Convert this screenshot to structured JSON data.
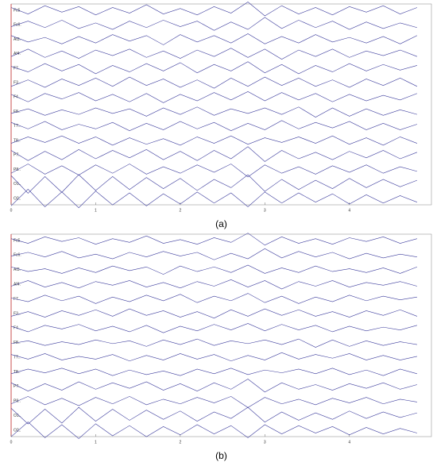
{
  "chart_data": [
    {
      "type": "line",
      "caption": "(a)",
      "color": "#3b3b9c",
      "x": [
        0,
        0.2,
        0.4,
        0.6,
        0.8,
        1,
        1.2,
        1.4,
        1.6,
        1.8,
        2,
        2.2,
        2.4,
        2.6,
        2.8,
        3,
        3.2,
        3.4,
        3.6,
        3.8,
        4,
        4.2,
        4.4,
        4.6,
        4.8
      ],
      "xlim": [
        0,
        4.97
      ],
      "xticks": [
        0,
        1,
        2,
        3,
        4
      ],
      "ylim": [
        -12,
        12
      ],
      "series": [
        {
          "name": "Fc5.",
          "values": [
            3,
            -4,
            5,
            -2,
            4,
            -5,
            3,
            -3,
            6,
            -4,
            2,
            -5,
            4,
            -3,
            9,
            -6,
            5,
            -4,
            3,
            -5,
            4,
            -2,
            5,
            -4,
            3
          ]
        },
        {
          "name": "Fc6.",
          "values": [
            -2,
            4,
            -3,
            5,
            -4,
            2,
            -5,
            4,
            -3,
            5,
            -2,
            4,
            -6,
            3,
            -5,
            8,
            -4,
            5,
            -3,
            4,
            -5,
            3,
            -4,
            2,
            -3
          ]
        },
        {
          "name": "Af3.",
          "values": [
            4,
            -3,
            2,
            -5,
            3,
            -4,
            5,
            -2,
            4,
            -6,
            5,
            -3,
            4,
            -4,
            6,
            -5,
            3,
            -4,
            5,
            -3,
            2,
            -4,
            3,
            -5,
            4
          ]
        },
        {
          "name": "Af4.",
          "values": [
            -3,
            5,
            -4,
            3,
            -5,
            4,
            -2,
            5,
            -4,
            3,
            -5,
            4,
            -3,
            6,
            -4,
            5,
            -6,
            4,
            -3,
            5,
            -4,
            3,
            -2,
            4,
            -3
          ]
        },
        {
          "name": "F7..",
          "values": [
            2,
            -4,
            5,
            -3,
            4,
            -6,
            3,
            -4,
            5,
            -3,
            6,
            -5,
            4,
            -3,
            7,
            -5,
            4,
            -6,
            3,
            -4,
            5,
            -3,
            4,
            -2,
            3
          ]
        },
        {
          "name": "F3..",
          "values": [
            -4,
            3,
            -5,
            4,
            -3,
            5,
            -4,
            6,
            -3,
            4,
            -5,
            3,
            -6,
            5,
            -4,
            6,
            -3,
            5,
            -4,
            3,
            -5,
            4,
            -3,
            5,
            -4
          ]
        },
        {
          "name": "F4..",
          "values": [
            3,
            -5,
            4,
            -2,
            5,
            -4,
            3,
            -5,
            4,
            -6,
            3,
            -4,
            5,
            -3,
            6,
            -4,
            5,
            -3,
            4,
            -5,
            3,
            -4,
            2,
            -3,
            4
          ]
        },
        {
          "name": "F8..",
          "values": [
            -2,
            3,
            -4,
            2,
            -3,
            4,
            -2,
            3,
            -5,
            4,
            -3,
            5,
            -4,
            3,
            -2,
            4,
            -3,
            5,
            -6,
            4,
            -5,
            3,
            -4,
            2,
            -3
          ]
        },
        {
          "name": "T7..",
          "values": [
            4,
            -3,
            5,
            -4,
            2,
            -3,
            4,
            -5,
            3,
            -4,
            5,
            -3,
            4,
            -5,
            3,
            -4,
            6,
            -3,
            4,
            -2,
            5,
            -4,
            3,
            -4,
            2
          ]
        },
        {
          "name": "T8..",
          "values": [
            -3,
            4,
            -2,
            5,
            -3,
            4,
            -5,
            3,
            -4,
            2,
            -5,
            4,
            -3,
            5,
            -4,
            3,
            -2,
            4,
            -3,
            5,
            -4,
            3,
            -5,
            4,
            -3
          ]
        },
        {
          "name": "P7..",
          "values": [
            5,
            -6,
            4,
            -5,
            6,
            -4,
            5,
            -3,
            6,
            -5,
            4,
            -6,
            5,
            -4,
            9,
            -7,
            5,
            -4,
            3,
            -5,
            4,
            -3,
            5,
            -4,
            3
          ]
        },
        {
          "name": "P8..",
          "values": [
            -4,
            6,
            -5,
            4,
            -6,
            5,
            -4,
            6,
            -5,
            3,
            -4,
            5,
            -3,
            6,
            -8,
            5,
            -4,
            3,
            -5,
            4,
            -3,
            5,
            -4,
            3,
            -2
          ]
        },
        {
          "name": "O1..",
          "values": [
            9,
            -10,
            8,
            -9,
            10,
            -7,
            8,
            -6,
            7,
            -5,
            6,
            -7,
            5,
            -4,
            10,
            -8,
            5,
            -6,
            4,
            -5,
            6,
            -4,
            5,
            -3,
            4
          ]
        },
        {
          "name": "O2..",
          "values": [
            -8,
            10,
            -9,
            7,
            -10,
            8,
            -7,
            6,
            -8,
            5,
            -6,
            7,
            -5,
            6,
            -9,
            7,
            -5,
            6,
            -4,
            5,
            -6,
            4,
            -5,
            3,
            -4
          ]
        }
      ]
    },
    {
      "type": "line",
      "caption": "(b)",
      "color": "#3b3b9c",
      "x": [
        0,
        0.2,
        0.4,
        0.6,
        0.8,
        1,
        1.2,
        1.4,
        1.6,
        1.8,
        2,
        2.2,
        2.4,
        2.6,
        2.8,
        3,
        3.2,
        3.4,
        3.6,
        3.8,
        4,
        4.2,
        4.4,
        4.6,
        4.8
      ],
      "xlim": [
        0,
        4.97
      ],
      "xticks": [
        0,
        1,
        2,
        3,
        4
      ],
      "ylim": [
        -12,
        12
      ],
      "series": [
        {
          "name": "Fc5.",
          "values": [
            2,
            -3,
            4,
            -1,
            3,
            -4,
            2,
            -2,
            5,
            -3,
            1,
            -4,
            3,
            -2,
            8,
            -5,
            4,
            -3,
            2,
            -4,
            3,
            -1,
            4,
            -3,
            2
          ]
        },
        {
          "name": "Fc6.",
          "values": [
            -1,
            3,
            -2,
            4,
            -3,
            1,
            -4,
            3,
            -2,
            4,
            -1,
            3,
            -5,
            2,
            -4,
            7,
            -3,
            4,
            -2,
            3,
            -4,
            2,
            -3,
            1,
            -2
          ]
        },
        {
          "name": "Af3.",
          "values": [
            3,
            -2,
            1,
            -4,
            2,
            -3,
            4,
            -1,
            3,
            -5,
            4,
            -2,
            3,
            -3,
            5,
            -4,
            2,
            -3,
            4,
            -2,
            1,
            -3,
            2,
            -4,
            3
          ]
        },
        {
          "name": "Af4.",
          "values": [
            -2,
            4,
            -3,
            2,
            -4,
            3,
            -1,
            4,
            -3,
            2,
            -4,
            3,
            -2,
            5,
            -3,
            4,
            -5,
            3,
            -2,
            4,
            -3,
            2,
            -1,
            3,
            -2
          ]
        },
        {
          "name": "F7..",
          "values": [
            1,
            -3,
            4,
            -2,
            3,
            -5,
            2,
            -3,
            4,
            -2,
            5,
            -4,
            3,
            -2,
            6,
            -4,
            3,
            -5,
            2,
            -3,
            4,
            -2,
            3,
            -1,
            2
          ]
        },
        {
          "name": "F3..",
          "values": [
            -3,
            2,
            -4,
            3,
            -2,
            4,
            -3,
            5,
            -2,
            3,
            -4,
            2,
            -5,
            4,
            -3,
            5,
            -2,
            4,
            -3,
            2,
            -4,
            3,
            -2,
            4,
            -3
          ]
        },
        {
          "name": "F4..",
          "values": [
            2,
            -4,
            3,
            -1,
            4,
            -3,
            2,
            -4,
            3,
            -5,
            2,
            -3,
            4,
            -2,
            5,
            -3,
            4,
            -2,
            3,
            -4,
            2,
            -3,
            1,
            -2,
            3
          ]
        },
        {
          "name": "F8..",
          "values": [
            -1,
            2,
            -3,
            1,
            -2,
            3,
            -1,
            2,
            -4,
            3,
            -2,
            4,
            -3,
            2,
            -1,
            3,
            -2,
            4,
            -5,
            3,
            -4,
            2,
            -3,
            1,
            -2
          ]
        },
        {
          "name": "T7..",
          "values": [
            3,
            -2,
            4,
            -3,
            1,
            -2,
            3,
            -4,
            2,
            -3,
            4,
            -2,
            3,
            -4,
            2,
            -3,
            5,
            -2,
            3,
            -1,
            4,
            -3,
            2,
            -3,
            1
          ]
        },
        {
          "name": "T8..",
          "values": [
            -2,
            3,
            -1,
            4,
            -2,
            3,
            -4,
            2,
            -3,
            1,
            -4,
            3,
            -2,
            4,
            -3,
            2,
            -1,
            3,
            -2,
            4,
            -3,
            2,
            -4,
            3,
            -2
          ]
        },
        {
          "name": "P7..",
          "values": [
            4,
            -5,
            3,
            -4,
            5,
            -3,
            4,
            -2,
            5,
            -4,
            3,
            -5,
            4,
            -3,
            8,
            -6,
            4,
            -3,
            2,
            -4,
            3,
            -2,
            4,
            -3,
            2
          ]
        },
        {
          "name": "P8..",
          "values": [
            -3,
            5,
            -4,
            3,
            -5,
            4,
            -3,
            5,
            -4,
            2,
            -3,
            4,
            -2,
            5,
            -7,
            4,
            -3,
            2,
            -4,
            3,
            -2,
            4,
            -3,
            2,
            -1
          ]
        },
        {
          "name": "O1..",
          "values": [
            8,
            -9,
            7,
            -8,
            9,
            -6,
            7,
            -5,
            6,
            -4,
            5,
            -6,
            4,
            -3,
            9,
            -7,
            4,
            -5,
            3,
            -4,
            5,
            -3,
            4,
            -2,
            3
          ]
        },
        {
          "name": "O2..",
          "values": [
            -7,
            9,
            -8,
            6,
            -9,
            7,
            -6,
            5,
            -7,
            4,
            -5,
            6,
            -4,
            5,
            -8,
            6,
            -4,
            5,
            -3,
            4,
            -5,
            3,
            -4,
            2,
            -3
          ]
        }
      ]
    }
  ]
}
